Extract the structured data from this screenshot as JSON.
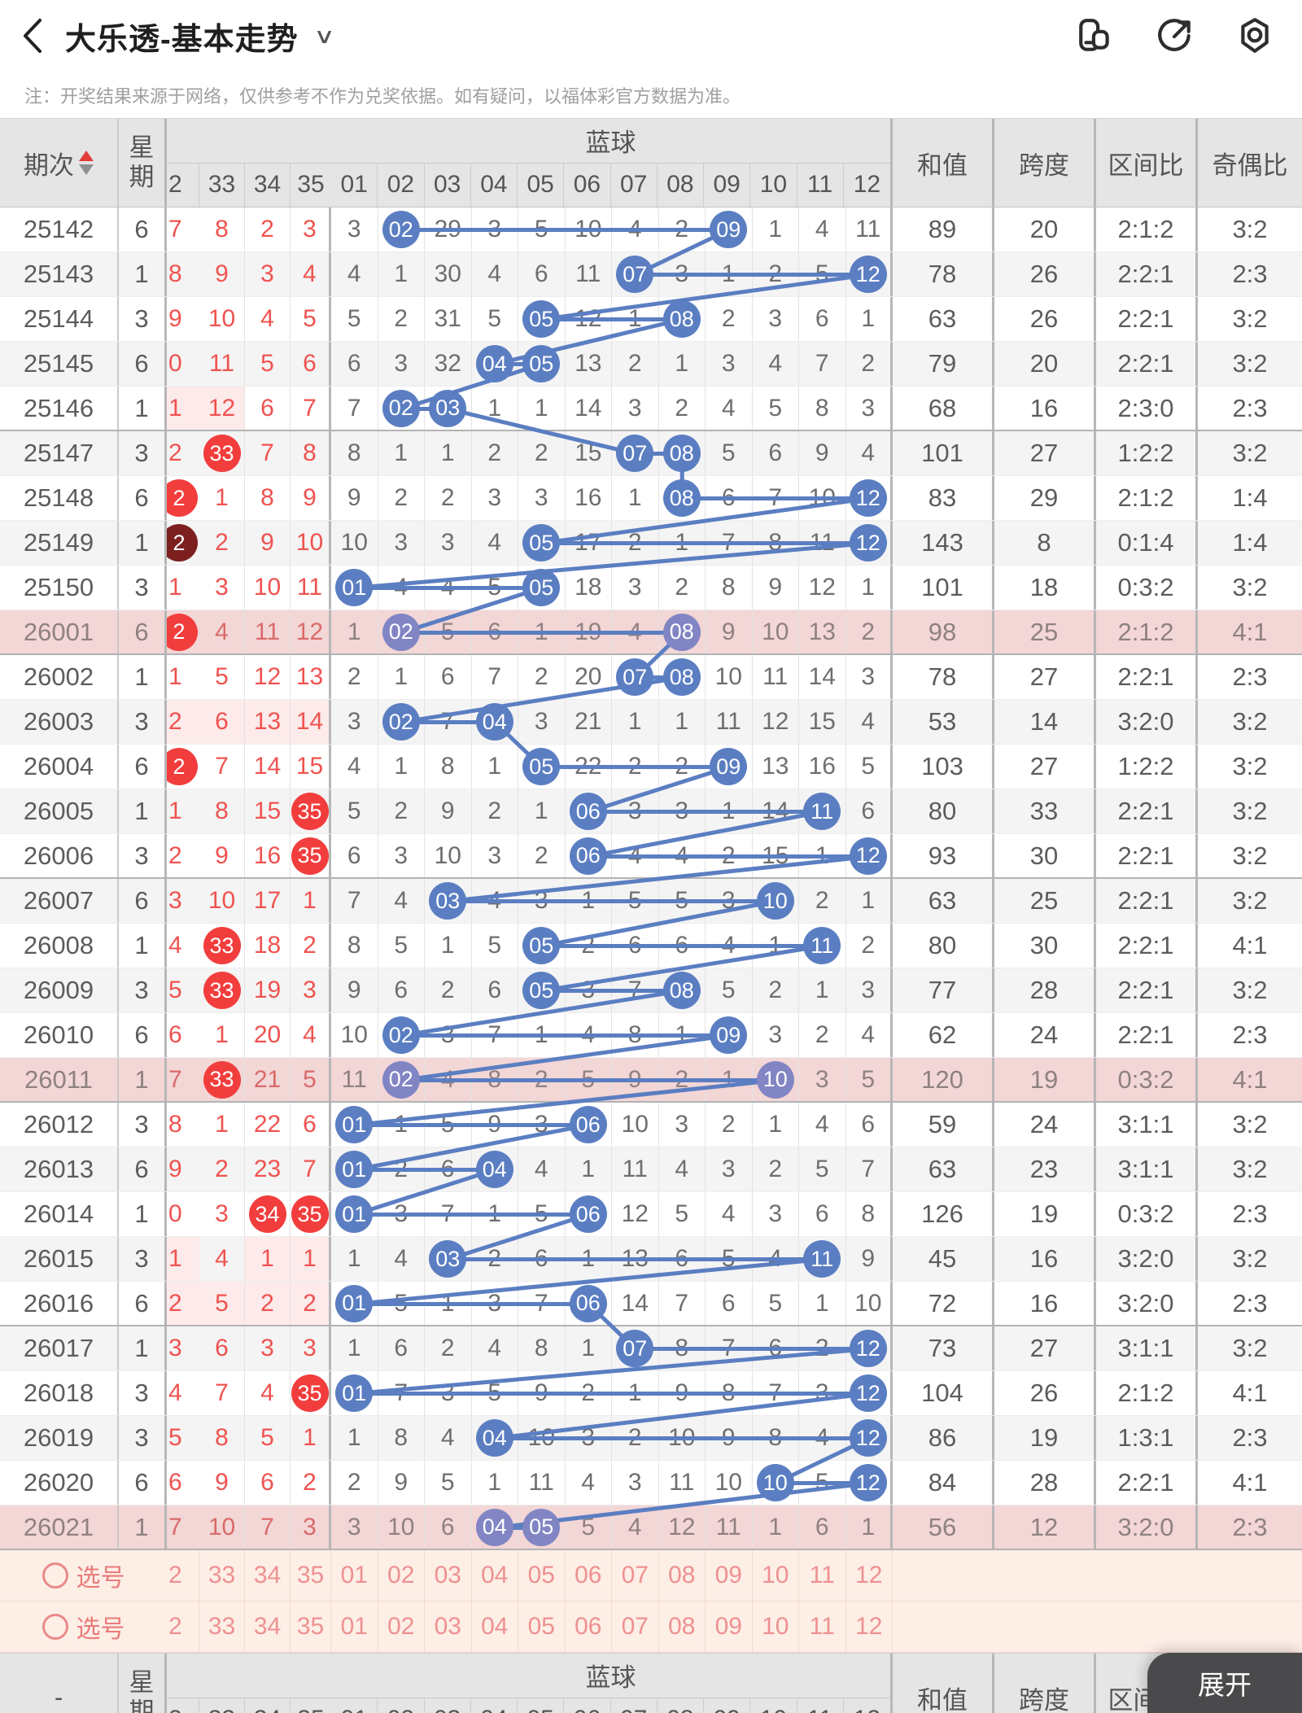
{
  "appbar": {
    "title": "大乐透-基本走势"
  },
  "note": "注：开奖结果来源于网络，仅供参考不作为兑奖依据。如有疑问，以福体彩官方数据为准。",
  "expand_label": "展开",
  "colors": {
    "blue": "#5b7ec2",
    "purple": "#8185c4",
    "red": "#f23d3d",
    "dark_red": "#7d1f1f",
    "pink_row": "#f3d6d6",
    "accent_red": "#ef5350"
  },
  "table": {
    "period_header": "期次",
    "week_header": "星期",
    "blue_header": "蓝球",
    "sum_header": "和值",
    "span_header": "跨度",
    "zone_header": "区间比",
    "parity_header": "奇偶比",
    "footer_period": "-",
    "pick_label": "选号",
    "red_cols": [
      "2",
      "33",
      "34",
      "35"
    ],
    "blue_cols": [
      "01",
      "02",
      "03",
      "04",
      "05",
      "06",
      "07",
      "08",
      "09",
      "10",
      "11",
      "12"
    ],
    "rows": [
      {
        "period": "25142",
        "week": "6",
        "red": [
          "7",
          "8",
          "2",
          "3"
        ],
        "red_hits": [],
        "red_dark_hits": [],
        "pink_red": [],
        "blue": [
          "3",
          "02",
          "29",
          "3",
          "5",
          "10",
          "4",
          "2",
          "09",
          "1",
          "4",
          "11"
        ],
        "hits": [
          "02",
          "09"
        ],
        "sum": "89",
        "span": "20",
        "zone": "2:1:2",
        "parity": "3:2",
        "milestone": false
      },
      {
        "period": "25143",
        "week": "1",
        "red": [
          "8",
          "9",
          "3",
          "4"
        ],
        "red_hits": [],
        "red_dark_hits": [],
        "pink_red": [],
        "blue": [
          "4",
          "1",
          "30",
          "4",
          "6",
          "11",
          "07",
          "3",
          "1",
          "2",
          "5",
          "12"
        ],
        "hits": [
          "07",
          "12"
        ],
        "sum": "78",
        "span": "26",
        "zone": "2:2:1",
        "parity": "2:3",
        "milestone": false
      },
      {
        "period": "25144",
        "week": "3",
        "red": [
          "9",
          "10",
          "4",
          "5"
        ],
        "red_hits": [],
        "red_dark_hits": [],
        "pink_red": [],
        "blue": [
          "5",
          "2",
          "31",
          "5",
          "05",
          "12",
          "1",
          "08",
          "2",
          "3",
          "6",
          "1"
        ],
        "hits": [
          "05",
          "08"
        ],
        "sum": "63",
        "span": "26",
        "zone": "2:2:1",
        "parity": "3:2",
        "milestone": false
      },
      {
        "period": "25145",
        "week": "6",
        "red": [
          "0",
          "11",
          "5",
          "6"
        ],
        "red_hits": [],
        "red_dark_hits": [],
        "pink_red": [],
        "blue": [
          "6",
          "3",
          "32",
          "04",
          "05",
          "13",
          "2",
          "1",
          "3",
          "4",
          "7",
          "2"
        ],
        "hits": [
          "04",
          "05"
        ],
        "sum": "79",
        "span": "20",
        "zone": "2:2:1",
        "parity": "3:2",
        "milestone": false
      },
      {
        "period": "25146",
        "week": "1",
        "red": [
          "1",
          "12",
          "6",
          "7"
        ],
        "red_hits": [],
        "red_dark_hits": [],
        "pink_red": [
          0,
          1
        ],
        "blue": [
          "7",
          "02",
          "03",
          "1",
          "1",
          "14",
          "3",
          "2",
          "4",
          "5",
          "8",
          "3"
        ],
        "hits": [
          "02",
          "03"
        ],
        "sum": "68",
        "span": "16",
        "zone": "2:3:0",
        "parity": "2:3",
        "milestone": false
      },
      {
        "period": "25147",
        "week": "3",
        "red": [
          "2",
          "33",
          "7",
          "8"
        ],
        "red_hits": [
          1
        ],
        "red_dark_hits": [],
        "pink_red": [],
        "blue": [
          "8",
          "1",
          "1",
          "2",
          "2",
          "15",
          "07",
          "08",
          "5",
          "6",
          "9",
          "4"
        ],
        "hits": [
          "07",
          "08"
        ],
        "sum": "101",
        "span": "27",
        "zone": "1:2:2",
        "parity": "3:2",
        "milestone": false
      },
      {
        "period": "25148",
        "week": "6",
        "red": [
          "2",
          "1",
          "8",
          "9"
        ],
        "red_hits": [
          0
        ],
        "red_dark_hits": [],
        "pink_red": [],
        "blue": [
          "9",
          "2",
          "2",
          "3",
          "3",
          "16",
          "1",
          "08",
          "6",
          "7",
          "10",
          "12"
        ],
        "hits": [
          "08",
          "12"
        ],
        "sum": "83",
        "span": "29",
        "zone": "2:1:2",
        "parity": "1:4",
        "milestone": false
      },
      {
        "period": "25149",
        "week": "1",
        "red": [
          "2",
          "2",
          "9",
          "10"
        ],
        "red_hits": [],
        "red_dark_hits": [
          0
        ],
        "pink_red": [],
        "blue": [
          "10",
          "3",
          "3",
          "4",
          "05",
          "17",
          "2",
          "1",
          "7",
          "8",
          "11",
          "12"
        ],
        "hits": [
          "05",
          "12"
        ],
        "sum": "143",
        "span": "8",
        "zone": "0:1:4",
        "parity": "1:4",
        "milestone": false
      },
      {
        "period": "25150",
        "week": "3",
        "red": [
          "1",
          "3",
          "10",
          "11"
        ],
        "red_hits": [],
        "red_dark_hits": [],
        "pink_red": [],
        "blue": [
          "01",
          "4",
          "4",
          "5",
          "05",
          "18",
          "3",
          "2",
          "8",
          "9",
          "12",
          "1"
        ],
        "hits": [
          "01",
          "05"
        ],
        "sum": "101",
        "span": "18",
        "zone": "0:3:2",
        "parity": "3:2",
        "milestone": false
      },
      {
        "period": "26001",
        "week": "6",
        "red": [
          "2",
          "4",
          "11",
          "12"
        ],
        "red_hits": [
          0
        ],
        "red_dark_hits": [],
        "pink_red": [],
        "blue": [
          "1",
          "02",
          "5",
          "6",
          "1",
          "19",
          "4",
          "08",
          "9",
          "10",
          "13",
          "2"
        ],
        "hits": [
          "02",
          "08"
        ],
        "sum": "98",
        "span": "25",
        "zone": "2:1:2",
        "parity": "4:1",
        "milestone": true
      },
      {
        "period": "26002",
        "week": "1",
        "red": [
          "1",
          "5",
          "12",
          "13"
        ],
        "red_hits": [],
        "red_dark_hits": [],
        "pink_red": [],
        "blue": [
          "2",
          "1",
          "6",
          "7",
          "2",
          "20",
          "07",
          "08",
          "10",
          "11",
          "14",
          "3"
        ],
        "hits": [
          "07",
          "08"
        ],
        "sum": "78",
        "span": "27",
        "zone": "2:2:1",
        "parity": "2:3",
        "milestone": false
      },
      {
        "period": "26003",
        "week": "3",
        "red": [
          "2",
          "6",
          "13",
          "14"
        ],
        "red_hits": [],
        "red_dark_hits": [],
        "pink_red": [
          0,
          1,
          2,
          3
        ],
        "blue": [
          "3",
          "02",
          "7",
          "04",
          "3",
          "21",
          "1",
          "1",
          "11",
          "12",
          "15",
          "4"
        ],
        "hits": [
          "02",
          "04"
        ],
        "sum": "53",
        "span": "14",
        "zone": "3:2:0",
        "parity": "3:2",
        "milestone": false
      },
      {
        "period": "26004",
        "week": "6",
        "red": [
          "2",
          "7",
          "14",
          "15"
        ],
        "red_hits": [
          0
        ],
        "red_dark_hits": [],
        "pink_red": [],
        "blue": [
          "4",
          "1",
          "8",
          "1",
          "05",
          "22",
          "2",
          "2",
          "09",
          "13",
          "16",
          "5"
        ],
        "hits": [
          "05",
          "09"
        ],
        "sum": "103",
        "span": "27",
        "zone": "1:2:2",
        "parity": "3:2",
        "milestone": false
      },
      {
        "period": "26005",
        "week": "1",
        "red": [
          "1",
          "8",
          "15",
          "35"
        ],
        "red_hits": [
          3
        ],
        "red_dark_hits": [],
        "pink_red": [],
        "blue": [
          "5",
          "2",
          "9",
          "2",
          "1",
          "06",
          "3",
          "3",
          "1",
          "14",
          "11",
          "6"
        ],
        "hits": [
          "06",
          "11"
        ],
        "sum": "80",
        "span": "33",
        "zone": "2:2:1",
        "parity": "3:2",
        "milestone": false
      },
      {
        "period": "26006",
        "week": "3",
        "red": [
          "2",
          "9",
          "16",
          "35"
        ],
        "red_hits": [
          3
        ],
        "red_dark_hits": [],
        "pink_red": [],
        "blue": [
          "6",
          "3",
          "10",
          "3",
          "2",
          "06",
          "4",
          "4",
          "2",
          "15",
          "1",
          "12"
        ],
        "hits": [
          "06",
          "12"
        ],
        "sum": "93",
        "span": "30",
        "zone": "2:2:1",
        "parity": "3:2",
        "milestone": false
      },
      {
        "period": "26007",
        "week": "6",
        "red": [
          "3",
          "10",
          "17",
          "1"
        ],
        "red_hits": [],
        "red_dark_hits": [],
        "pink_red": [],
        "blue": [
          "7",
          "4",
          "03",
          "4",
          "3",
          "1",
          "5",
          "5",
          "3",
          "10",
          "2",
          "1"
        ],
        "hits": [
          "03",
          "10"
        ],
        "sum": "63",
        "span": "25",
        "zone": "2:2:1",
        "parity": "3:2",
        "milestone": false
      },
      {
        "period": "26008",
        "week": "1",
        "red": [
          "4",
          "33",
          "18",
          "2"
        ],
        "red_hits": [
          1
        ],
        "red_dark_hits": [],
        "pink_red": [],
        "blue": [
          "8",
          "5",
          "1",
          "5",
          "05",
          "2",
          "6",
          "6",
          "4",
          "1",
          "11",
          "2"
        ],
        "hits": [
          "05",
          "11"
        ],
        "sum": "80",
        "span": "30",
        "zone": "2:2:1",
        "parity": "4:1",
        "milestone": false
      },
      {
        "period": "26009",
        "week": "3",
        "red": [
          "5",
          "33",
          "19",
          "3"
        ],
        "red_hits": [
          1
        ],
        "red_dark_hits": [],
        "pink_red": [],
        "blue": [
          "9",
          "6",
          "2",
          "6",
          "05",
          "3",
          "7",
          "08",
          "5",
          "2",
          "1",
          "3"
        ],
        "hits": [
          "05",
          "08"
        ],
        "sum": "77",
        "span": "28",
        "zone": "2:2:1",
        "parity": "3:2",
        "milestone": false
      },
      {
        "period": "26010",
        "week": "6",
        "red": [
          "6",
          "1",
          "20",
          "4"
        ],
        "red_hits": [],
        "red_dark_hits": [],
        "pink_red": [],
        "blue": [
          "10",
          "02",
          "3",
          "7",
          "1",
          "4",
          "8",
          "1",
          "09",
          "3",
          "2",
          "4"
        ],
        "hits": [
          "02",
          "09"
        ],
        "sum": "62",
        "span": "24",
        "zone": "2:2:1",
        "parity": "2:3",
        "milestone": false
      },
      {
        "period": "26011",
        "week": "1",
        "red": [
          "7",
          "33",
          "21",
          "5"
        ],
        "red_hits": [
          1
        ],
        "red_dark_hits": [],
        "pink_red": [],
        "blue": [
          "11",
          "02",
          "4",
          "8",
          "2",
          "5",
          "9",
          "2",
          "1",
          "10",
          "3",
          "5"
        ],
        "hits": [
          "02",
          "10"
        ],
        "sum": "120",
        "span": "19",
        "zone": "0:3:2",
        "parity": "4:1",
        "milestone": true
      },
      {
        "period": "26012",
        "week": "3",
        "red": [
          "8",
          "1",
          "22",
          "6"
        ],
        "red_hits": [],
        "red_dark_hits": [],
        "pink_red": [],
        "blue": [
          "01",
          "1",
          "5",
          "9",
          "3",
          "06",
          "10",
          "3",
          "2",
          "1",
          "4",
          "6"
        ],
        "hits": [
          "01",
          "06"
        ],
        "sum": "59",
        "span": "24",
        "zone": "3:1:1",
        "parity": "3:2",
        "milestone": false
      },
      {
        "period": "26013",
        "week": "6",
        "red": [
          "9",
          "2",
          "23",
          "7"
        ],
        "red_hits": [],
        "red_dark_hits": [],
        "pink_red": [],
        "blue": [
          "01",
          "2",
          "6",
          "04",
          "4",
          "1",
          "11",
          "4",
          "3",
          "2",
          "5",
          "7"
        ],
        "hits": [
          "01",
          "04"
        ],
        "sum": "63",
        "span": "23",
        "zone": "3:1:1",
        "parity": "3:2",
        "milestone": false
      },
      {
        "period": "26014",
        "week": "1",
        "red": [
          "0",
          "3",
          "34",
          "35"
        ],
        "red_hits": [
          2,
          3
        ],
        "red_dark_hits": [],
        "pink_red": [],
        "blue": [
          "01",
          "3",
          "7",
          "1",
          "5",
          "06",
          "12",
          "5",
          "4",
          "3",
          "6",
          "8"
        ],
        "hits": [
          "01",
          "06"
        ],
        "sum": "126",
        "span": "19",
        "zone": "0:3:2",
        "parity": "2:3",
        "milestone": false
      },
      {
        "period": "26015",
        "week": "3",
        "red": [
          "1",
          "4",
          "1",
          "1"
        ],
        "red_hits": [],
        "red_dark_hits": [],
        "pink_red": [
          0,
          2,
          3
        ],
        "blue": [
          "1",
          "4",
          "03",
          "2",
          "6",
          "1",
          "13",
          "6",
          "5",
          "4",
          "11",
          "9"
        ],
        "hits": [
          "03",
          "11"
        ],
        "sum": "45",
        "span": "16",
        "zone": "3:2:0",
        "parity": "3:2",
        "milestone": false
      },
      {
        "period": "26016",
        "week": "6",
        "red": [
          "2",
          "5",
          "2",
          "2"
        ],
        "red_hits": [],
        "red_dark_hits": [],
        "pink_red": [
          0,
          1,
          2,
          3
        ],
        "blue": [
          "01",
          "5",
          "1",
          "3",
          "7",
          "06",
          "14",
          "7",
          "6",
          "5",
          "1",
          "10"
        ],
        "hits": [
          "01",
          "06"
        ],
        "sum": "72",
        "span": "16",
        "zone": "3:2:0",
        "parity": "2:3",
        "milestone": false
      },
      {
        "period": "26017",
        "week": "1",
        "red": [
          "3",
          "6",
          "3",
          "3"
        ],
        "red_hits": [],
        "red_dark_hits": [],
        "pink_red": [],
        "blue": [
          "1",
          "6",
          "2",
          "4",
          "8",
          "1",
          "07",
          "8",
          "7",
          "6",
          "2",
          "12"
        ],
        "hits": [
          "07",
          "12"
        ],
        "sum": "73",
        "span": "27",
        "zone": "3:1:1",
        "parity": "3:2",
        "milestone": false
      },
      {
        "period": "26018",
        "week": "3",
        "red": [
          "4",
          "7",
          "4",
          "35"
        ],
        "red_hits": [
          3
        ],
        "red_dark_hits": [],
        "pink_red": [],
        "blue": [
          "01",
          "7",
          "3",
          "5",
          "9",
          "2",
          "1",
          "9",
          "8",
          "7",
          "3",
          "12"
        ],
        "hits": [
          "01",
          "12"
        ],
        "sum": "104",
        "span": "26",
        "zone": "2:1:2",
        "parity": "4:1",
        "milestone": false
      },
      {
        "period": "26019",
        "week": "3",
        "red": [
          "5",
          "8",
          "5",
          "1"
        ],
        "red_hits": [],
        "red_dark_hits": [],
        "pink_red": [],
        "blue": [
          "1",
          "8",
          "4",
          "04",
          "10",
          "3",
          "2",
          "10",
          "9",
          "8",
          "4",
          "12"
        ],
        "hits": [
          "04",
          "12"
        ],
        "sum": "86",
        "span": "19",
        "zone": "1:3:1",
        "parity": "2:3",
        "milestone": false
      },
      {
        "period": "26020",
        "week": "6",
        "red": [
          "6",
          "9",
          "6",
          "2"
        ],
        "red_hits": [],
        "red_dark_hits": [],
        "pink_red": [],
        "blue": [
          "2",
          "9",
          "5",
          "1",
          "11",
          "4",
          "3",
          "11",
          "10",
          "10",
          "5",
          "12"
        ],
        "hits": [
          "10",
          "12"
        ],
        "sum": "84",
        "span": "28",
        "zone": "2:2:1",
        "parity": "4:1",
        "milestone": false
      },
      {
        "period": "26021",
        "week": "1",
        "red": [
          "7",
          "10",
          "7",
          "3"
        ],
        "red_hits": [],
        "red_dark_hits": [],
        "pink_red": [],
        "blue": [
          "3",
          "10",
          "6",
          "04",
          "05",
          "5",
          "4",
          "12",
          "11",
          "1",
          "6",
          "1"
        ],
        "hits": [
          "04",
          "05"
        ],
        "sum": "56",
        "span": "12",
        "zone": "3:2:0",
        "parity": "2:3",
        "milestone": true
      }
    ]
  }
}
